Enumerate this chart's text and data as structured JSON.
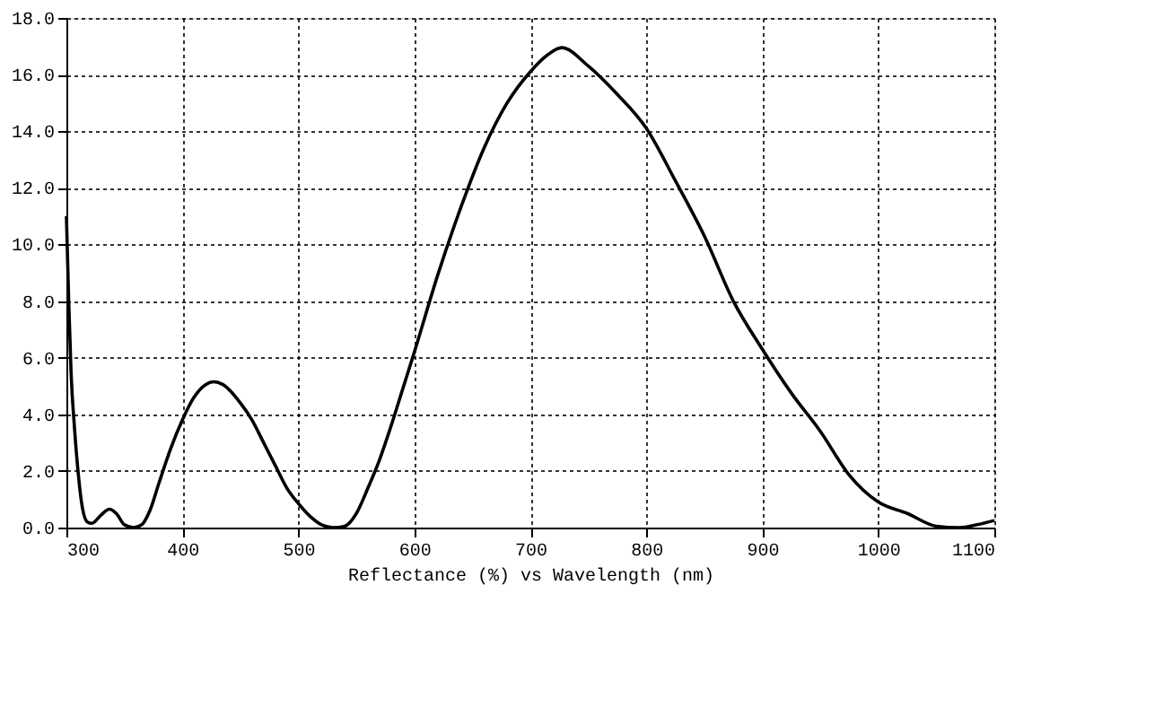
{
  "chart_data": {
    "type": "line",
    "xlabel": "Reflectance (%) vs Wavelength (nm)",
    "x": [
      300,
      302,
      304,
      307,
      310,
      313,
      318,
      322,
      330,
      337,
      343,
      350,
      358,
      365,
      372,
      380,
      390,
      400,
      410,
      420,
      427,
      435,
      450,
      460,
      470,
      480,
      490,
      500,
      510,
      520,
      530,
      540,
      550,
      560,
      570,
      580,
      590,
      600,
      620,
      640,
      660,
      680,
      700,
      715,
      727,
      750,
      775,
      800,
      825,
      850,
      875,
      900,
      925,
      950,
      975,
      1000,
      1025,
      1050,
      1070,
      1085,
      1100
    ],
    "series": [
      {
        "color": "#000000",
        "values": [
          11.0,
          8.0,
          5.5,
          3.5,
          2.0,
          0.9,
          0.2,
          0.15,
          0.45,
          0.65,
          0.5,
          0.1,
          0.0,
          0.1,
          0.6,
          1.6,
          2.8,
          3.8,
          4.6,
          5.05,
          5.15,
          5.05,
          4.4,
          3.8,
          3.0,
          2.2,
          1.4,
          0.85,
          0.4,
          0.1,
          0.0,
          0.05,
          0.5,
          1.4,
          2.4,
          3.6,
          4.9,
          6.2,
          8.9,
          11.3,
          13.4,
          15.0,
          16.1,
          16.7,
          16.95,
          16.3,
          15.3,
          14.1,
          12.25,
          10.3,
          8.0,
          6.3,
          4.75,
          3.4,
          1.85,
          0.9,
          0.5,
          0.05,
          0.0,
          0.1,
          0.25
        ]
      }
    ],
    "xlim": [
      300,
      1100
    ],
    "xticks": [
      300,
      400,
      500,
      600,
      700,
      800,
      900,
      1000,
      1100
    ],
    "ylim": [
      0,
      18
    ],
    "yticks": [
      {
        "value": 0,
        "label": "0.0"
      },
      {
        "value": 2,
        "label": "2.0"
      },
      {
        "value": 4,
        "label": "4.0"
      },
      {
        "value": 6,
        "label": "6.0"
      },
      {
        "value": 8,
        "label": "8.0"
      },
      {
        "value": 10,
        "label": "10.0"
      },
      {
        "value": 12,
        "label": "12.0"
      },
      {
        "value": 14,
        "label": "14.0"
      },
      {
        "value": 16,
        "label": "16.0"
      },
      {
        "value": 18,
        "label": "18.0"
      }
    ],
    "grid": true,
    "line_style": "solid",
    "marker": "none",
    "legend": false
  }
}
